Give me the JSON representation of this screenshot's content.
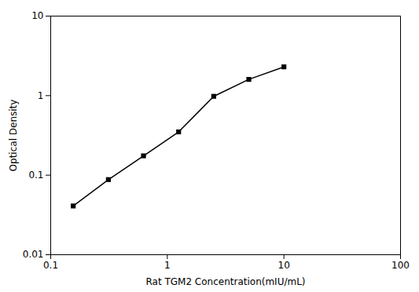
{
  "chart_data": {
    "type": "line",
    "xlabel": "Rat TGM2 Concentration(mIU/mL)",
    "ylabel": "Optical Density",
    "x": [
      0.156,
      0.3125,
      0.625,
      1.25,
      2.5,
      5.0,
      10.0
    ],
    "values": [
      0.041,
      0.088,
      0.175,
      0.35,
      0.98,
      1.6,
      2.3
    ],
    "xlim": [
      0.1,
      100
    ],
    "ylim": [
      0.01,
      10
    ],
    "xticks": [
      0.1,
      1,
      10,
      100
    ],
    "yticks": [
      0.01,
      0.1,
      1,
      10
    ],
    "log": true,
    "marker": "square",
    "grid": false
  }
}
